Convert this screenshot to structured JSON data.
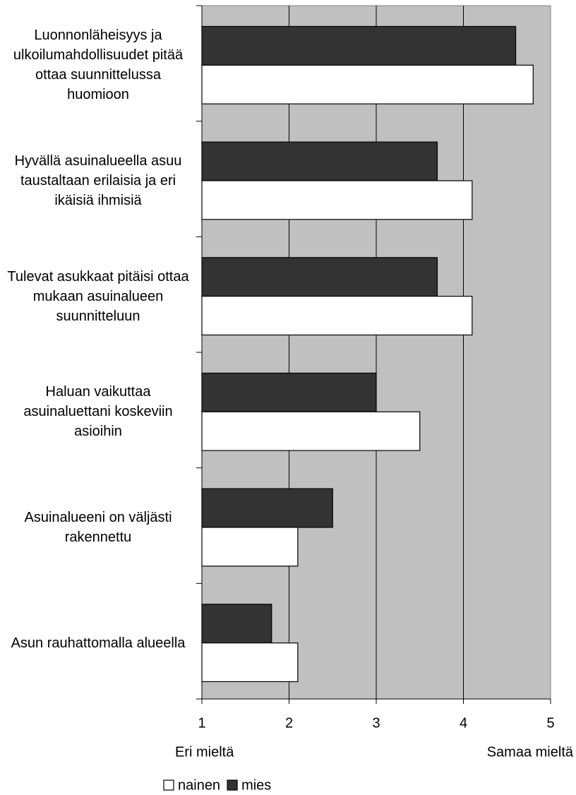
{
  "chart_data": {
    "type": "bar",
    "orientation": "horizontal",
    "categories": [
      "Luonnonläheisyys ja ulkoilumahdollisuudet pitää ottaa suunnittelussa huomioon",
      "Hyvällä asuinalueella asuu taustaltaan erilaisia ja eri ikäisiä ihmisiä",
      "Tulevat asukkaat pitäisi ottaa mukaan asuinalueen suunnitteluun",
      "Haluan vaikuttaa asuinaluettani koskeviin asioihin",
      "Asuinalueeni on väljästi rakennettu",
      "Asun rauhattomalla alueella"
    ],
    "series": [
      {
        "name": "nainen",
        "color": "#ffffff",
        "values": [
          4.8,
          4.1,
          4.1,
          3.5,
          2.1,
          2.1
        ]
      },
      {
        "name": "mies",
        "color": "#333333",
        "values": [
          4.6,
          3.7,
          3.7,
          3.0,
          2.5,
          1.8
        ]
      }
    ],
    "xlim": [
      1,
      5
    ],
    "xticks": [
      1,
      2,
      3,
      4,
      5
    ],
    "grid": true,
    "plot_background": "#c0c0c0",
    "annotations": [
      "Eri mieltä",
      "Samaa mieltä"
    ],
    "legend": "bottom"
  }
}
